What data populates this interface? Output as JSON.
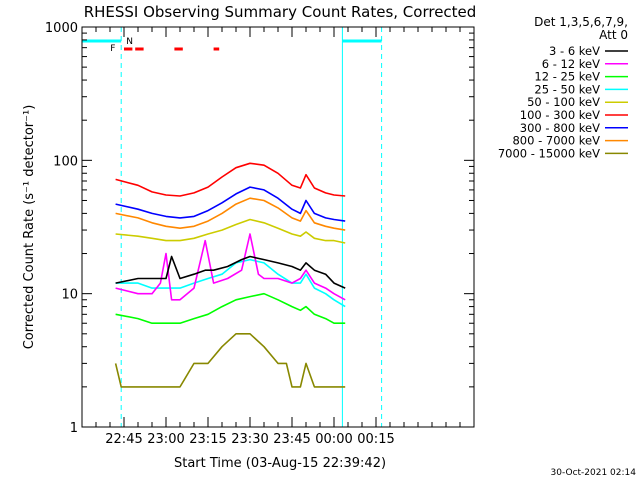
{
  "chart_data": {
    "type": "line",
    "title": "RHESSI Observing Summary Count Rates, Corrected",
    "xlabel": "Start Time (03-Aug-15 22:39:42)",
    "ylabel": "Corrected Count Rate (s⁻¹ detector⁻¹)",
    "footer": "30-Oct-2021 02:14",
    "yscale": "log",
    "ylim": [
      1,
      1000
    ],
    "xlim_minutes": [
      -20,
      120
    ],
    "x_ticks": [
      {
        "m": -5,
        "label": "22:45"
      },
      {
        "m": 10,
        "label": "23:00"
      },
      {
        "m": 25,
        "label": "23:15"
      },
      {
        "m": 40,
        "label": "23:30"
      },
      {
        "m": 55,
        "label": "23:45"
      },
      {
        "m": 70,
        "label": "00:00"
      },
      {
        "m": 85,
        "label": "00:15"
      }
    ],
    "y_ticks": [
      {
        "v": 1,
        "label": "1"
      },
      {
        "v": 10,
        "label": "10"
      },
      {
        "v": 100,
        "label": "100"
      },
      {
        "v": 1000,
        "label": "1000"
      }
    ],
    "legend": {
      "header": [
        "Det 1,3,5,6,7,9,",
        "Att 0"
      ],
      "placement": "right"
    },
    "markers": {
      "night_lines_minutes": [
        -20,
        73
      ],
      "saa_dashed_minutes": [
        -6,
        87
      ],
      "night_bar_color": "#00ffff",
      "flag_color": "#ff0000",
      "flag_labels": {
        "F": "F",
        "N": "N"
      },
      "flare_bars_minutes": [
        [
          -5,
          -2
        ],
        [
          -1,
          2
        ],
        [
          13,
          16
        ],
        [
          27,
          29
        ]
      ]
    },
    "series": [
      {
        "name": "3 - 6 keV",
        "color": "#000000",
        "x": [
          -8,
          0,
          5,
          10,
          12,
          15,
          20,
          24,
          27,
          32,
          37,
          40,
          45,
          50,
          55,
          58,
          60,
          63,
          67,
          70,
          74
        ],
        "y": [
          12,
          13,
          13,
          13,
          19,
          13,
          14,
          15,
          15,
          16,
          18,
          19,
          18,
          17,
          16,
          15,
          17,
          15,
          14,
          12,
          11
        ]
      },
      {
        "name": "6 - 12 keV",
        "color": "#ff00ff",
        "x": [
          -8,
          0,
          5,
          8,
          10,
          12,
          15,
          20,
          24,
          27,
          32,
          37,
          40,
          43,
          45,
          50,
          55,
          58,
          60,
          63,
          67,
          70,
          74
        ],
        "y": [
          11,
          10,
          10,
          12,
          20,
          9,
          9,
          11,
          25,
          12,
          13,
          15,
          28,
          14,
          13,
          13,
          12,
          13,
          15,
          12,
          11,
          10,
          9
        ]
      },
      {
        "name": "12 - 25 keV",
        "color": "#00ff00",
        "x": [
          -8,
          0,
          5,
          10,
          15,
          20,
          25,
          30,
          35,
          40,
          45,
          50,
          55,
          58,
          60,
          63,
          67,
          70,
          74
        ],
        "y": [
          7,
          6.5,
          6,
          6,
          6,
          6.5,
          7,
          8,
          9,
          9.5,
          10,
          9,
          8,
          7.5,
          8,
          7,
          6.5,
          6,
          6
        ]
      },
      {
        "name": "25 - 50 keV",
        "color": "#00ffff",
        "x": [
          -8,
          0,
          5,
          10,
          15,
          20,
          25,
          30,
          35,
          40,
          45,
          50,
          55,
          58,
          60,
          63,
          67,
          70,
          74
        ],
        "y": [
          12,
          12,
          11,
          11,
          11,
          12,
          13,
          14,
          17,
          18,
          17,
          14,
          12,
          12,
          14,
          11,
          10,
          9,
          8
        ]
      },
      {
        "name": "50 - 100 keV",
        "color": "#cccc00",
        "x": [
          -8,
          0,
          5,
          10,
          15,
          20,
          25,
          30,
          35,
          40,
          45,
          50,
          55,
          58,
          60,
          63,
          67,
          70,
          74
        ],
        "y": [
          28,
          27,
          26,
          25,
          25,
          26,
          28,
          30,
          33,
          36,
          34,
          31,
          28,
          27,
          29,
          26,
          25,
          25,
          24
        ]
      },
      {
        "name": "100 - 300 keV",
        "color": "#ff0000",
        "x": [
          -8,
          0,
          5,
          10,
          15,
          20,
          25,
          30,
          35,
          40,
          45,
          50,
          55,
          58,
          60,
          63,
          67,
          70,
          74
        ],
        "y": [
          72,
          65,
          58,
          55,
          54,
          57,
          63,
          75,
          88,
          95,
          92,
          80,
          65,
          62,
          78,
          62,
          57,
          55,
          54
        ]
      },
      {
        "name": "300 - 800 keV",
        "color": "#0000ff",
        "x": [
          -8,
          0,
          5,
          10,
          15,
          20,
          25,
          30,
          35,
          40,
          45,
          50,
          55,
          58,
          60,
          63,
          67,
          70,
          74
        ],
        "y": [
          47,
          43,
          40,
          38,
          37,
          38,
          42,
          48,
          56,
          63,
          60,
          52,
          43,
          40,
          50,
          40,
          37,
          36,
          35
        ]
      },
      {
        "name": "800 - 7000 keV",
        "color": "#ff8800",
        "x": [
          -8,
          0,
          5,
          10,
          15,
          20,
          25,
          30,
          35,
          40,
          45,
          50,
          55,
          58,
          60,
          63,
          67,
          70,
          74
        ],
        "y": [
          40,
          37,
          34,
          32,
          31,
          32,
          35,
          40,
          47,
          52,
          50,
          44,
          37,
          35,
          42,
          34,
          32,
          31,
          30
        ]
      },
      {
        "name": "7000 - 15000 keV",
        "color": "#888800",
        "x": [
          -8,
          -6,
          0,
          5,
          10,
          15,
          20,
          25,
          30,
          35,
          40,
          45,
          50,
          53,
          55,
          58,
          60,
          63,
          67,
          70,
          74
        ],
        "y": [
          3,
          2,
          2,
          2,
          2,
          2,
          3,
          3,
          4,
          5,
          5,
          4,
          3,
          3,
          2,
          2,
          3,
          2,
          2,
          2,
          2
        ]
      }
    ]
  }
}
